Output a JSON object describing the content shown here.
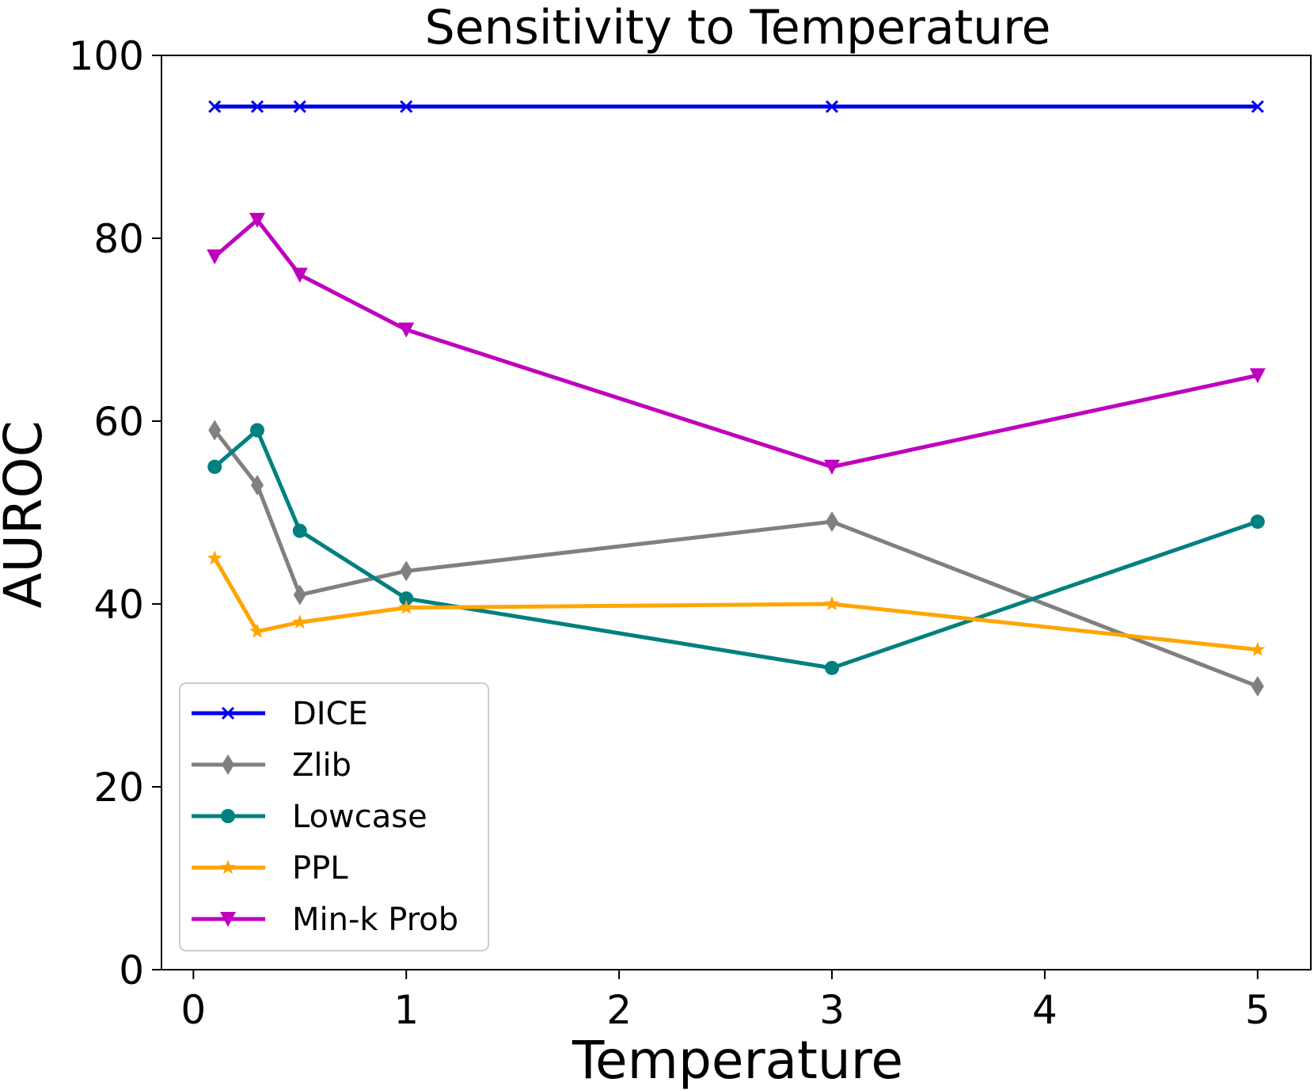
{
  "chart_data": {
    "type": "line",
    "title": "Sensitivity to Temperature",
    "xlabel": "Temperature",
    "ylabel": "AUROC",
    "xlim": [
      -0.15,
      5.25
    ],
    "ylim": [
      0,
      100
    ],
    "xticks": [
      0,
      1,
      2,
      3,
      4,
      5
    ],
    "yticks": [
      0,
      20,
      40,
      60,
      80,
      100
    ],
    "x": [
      0.1,
      0.3,
      0.5,
      1,
      3,
      5
    ],
    "grid": false,
    "legend_position": "lower-left",
    "series": [
      {
        "name": "DICE",
        "color": "#0000ee",
        "marker": "x",
        "values": [
          94.4,
          94.4,
          94.4,
          94.4,
          94.4,
          94.4
        ]
      },
      {
        "name": "Zlib",
        "color": "#808080",
        "marker": "diamond",
        "values": [
          59,
          53,
          41,
          43.6,
          49,
          31
        ]
      },
      {
        "name": "Lowcase",
        "color": "#008080",
        "marker": "circle",
        "values": [
          55,
          59,
          48,
          40.6,
          33,
          49
        ]
      },
      {
        "name": "PPL",
        "color": "#ffa500",
        "marker": "star",
        "values": [
          45,
          37,
          38,
          39.6,
          40,
          35
        ]
      },
      {
        "name": "Min-k Prob",
        "color": "#bf00bf",
        "marker": "triangle-down",
        "values": [
          78,
          82,
          76,
          70,
          55,
          65
        ]
      }
    ]
  }
}
